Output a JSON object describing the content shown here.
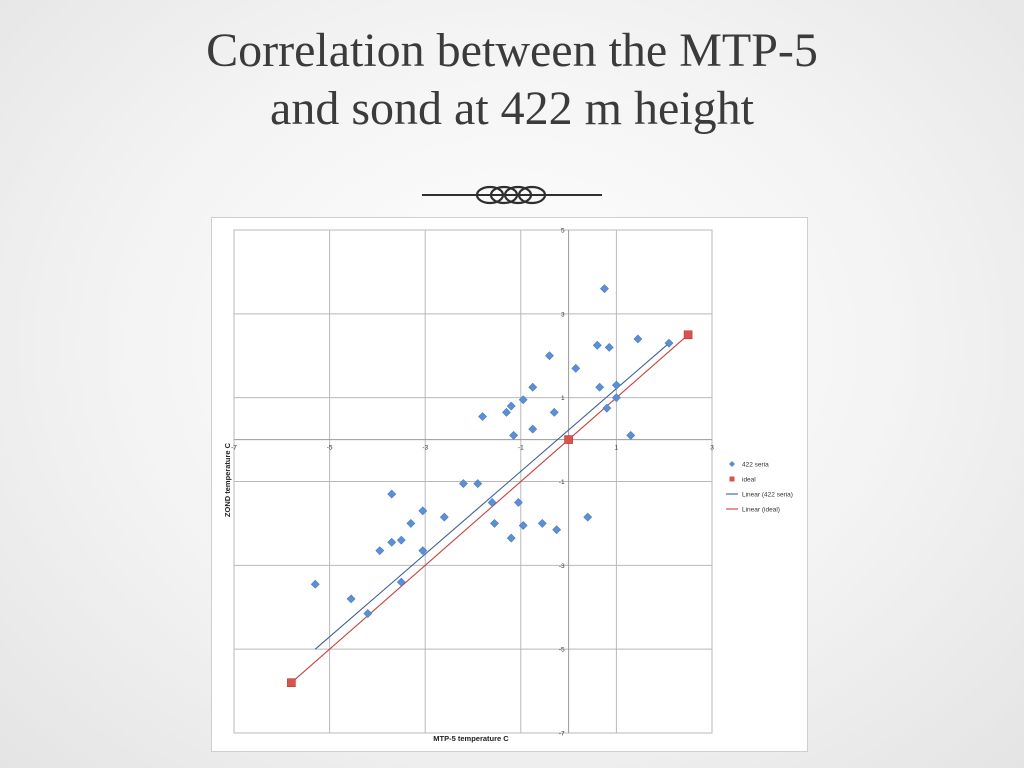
{
  "slide": {
    "title_line1": "Correlation between the MTP-5",
    "title_line2": "and sond at 422 m height"
  },
  "colors": {
    "series_422": "#5b8fd6",
    "series_ideal": "#d9534f",
    "trend_422": "#3d5f95",
    "trend_ideal": "#c9423c",
    "grid": "#b9b9b9",
    "title": "#3b3b3b"
  },
  "chart_data": {
    "type": "scatter",
    "xlabel": "MTP-5 temperature C",
    "ylabel": "ZOND temperature C",
    "xlim": [
      -7,
      3
    ],
    "ylim": [
      -7,
      5
    ],
    "x_ticks": [
      -7,
      -5,
      -3,
      -1,
      1,
      3
    ],
    "y_ticks": [
      5,
      3,
      1,
      -1,
      -3,
      -5,
      -7
    ],
    "grid": true,
    "legend_position": "right",
    "legend": [
      "422 seria",
      "ideal",
      "Linear (422 seria)",
      "Linear (ideal)"
    ],
    "series": [
      {
        "name": "422 seria",
        "marker": "diamond",
        "points": [
          [
            -5.3,
            -3.45
          ],
          [
            -4.55,
            -3.8
          ],
          [
            -4.2,
            -4.15
          ],
          [
            -3.95,
            -2.65
          ],
          [
            -3.7,
            -1.3
          ],
          [
            -3.7,
            -2.45
          ],
          [
            -3.5,
            -2.4
          ],
          [
            -3.5,
            -3.4
          ],
          [
            -3.3,
            -2.0
          ],
          [
            -3.05,
            -1.7
          ],
          [
            -3.05,
            -2.65
          ],
          [
            -2.6,
            -1.85
          ],
          [
            -2.2,
            -1.05
          ],
          [
            -1.9,
            -1.05
          ],
          [
            -1.8,
            0.55
          ],
          [
            -1.6,
            -1.5
          ],
          [
            -1.55,
            -2.0
          ],
          [
            -1.3,
            0.65
          ],
          [
            -1.15,
            0.1
          ],
          [
            -1.2,
            -2.35
          ],
          [
            -1.2,
            0.8
          ],
          [
            -1.05,
            -1.5
          ],
          [
            -0.95,
            0.95
          ],
          [
            -0.95,
            -2.05
          ],
          [
            -0.75,
            0.25
          ],
          [
            -0.75,
            1.25
          ],
          [
            -0.55,
            -2.0
          ],
          [
            -0.4,
            2.0
          ],
          [
            -0.3,
            0.65
          ],
          [
            -0.25,
            -2.15
          ],
          [
            0.15,
            1.7
          ],
          [
            0.4,
            -1.85
          ],
          [
            0.6,
            2.25
          ],
          [
            0.65,
            1.25
          ],
          [
            0.75,
            3.6
          ],
          [
            0.8,
            0.75
          ],
          [
            0.85,
            2.2
          ],
          [
            1.0,
            1.0
          ],
          [
            1.0,
            1.3
          ],
          [
            1.3,
            0.1
          ],
          [
            1.45,
            2.4
          ],
          [
            2.1,
            2.3
          ]
        ]
      },
      {
        "name": "ideal",
        "marker": "square",
        "points": [
          [
            -5.8,
            -5.8
          ],
          [
            0.0,
            0.0
          ],
          [
            2.5,
            2.5
          ]
        ]
      }
    ],
    "trendlines": [
      {
        "name": "Linear (422 seria)",
        "from": [
          -5.3,
          -5.0
        ],
        "to": [
          2.1,
          2.3
        ]
      },
      {
        "name": "Linear (ideal)",
        "from": [
          -5.8,
          -5.8
        ],
        "to": [
          2.5,
          2.5
        ]
      }
    ]
  }
}
